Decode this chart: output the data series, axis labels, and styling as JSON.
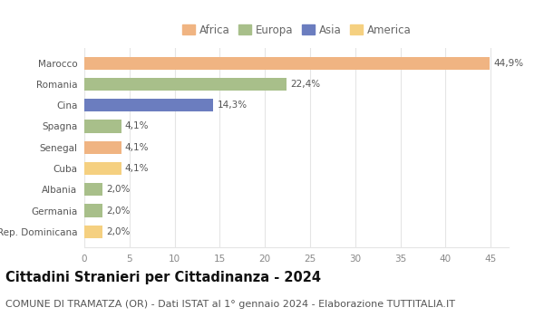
{
  "categories": [
    "Marocco",
    "Romania",
    "Cina",
    "Spagna",
    "Senegal",
    "Cuba",
    "Albania",
    "Germania",
    "Rep. Dominicana"
  ],
  "values": [
    44.9,
    22.4,
    14.3,
    4.1,
    4.1,
    4.1,
    2.0,
    2.0,
    2.0
  ],
  "labels": [
    "44,9%",
    "22,4%",
    "14,3%",
    "4,1%",
    "4,1%",
    "4,1%",
    "2,0%",
    "2,0%",
    "2,0%"
  ],
  "colors": [
    "#f0b482",
    "#a8bf8a",
    "#6b7dbf",
    "#a8bf8a",
    "#f0b482",
    "#f5d080",
    "#a8bf8a",
    "#a8bf8a",
    "#f5d080"
  ],
  "legend_labels": [
    "Africa",
    "Europa",
    "Asia",
    "America"
  ],
  "legend_colors": [
    "#f0b482",
    "#a8bf8a",
    "#6b7dbf",
    "#f5d080"
  ],
  "xlim": [
    0,
    47
  ],
  "xticks": [
    0,
    5,
    10,
    15,
    20,
    25,
    30,
    35,
    40,
    45
  ],
  "title": "Cittadini Stranieri per Cittadinanza - 2024",
  "subtitle": "COMUNE DI TRAMATZA (OR) - Dati ISTAT al 1° gennaio 2024 - Elaborazione TUTTITALIA.IT",
  "bg_color": "#ffffff",
  "grid_color": "#e5e5e5",
  "bar_height": 0.62,
  "title_fontsize": 10.5,
  "subtitle_fontsize": 8,
  "label_fontsize": 7.5,
  "tick_fontsize": 7.5,
  "legend_fontsize": 8.5
}
